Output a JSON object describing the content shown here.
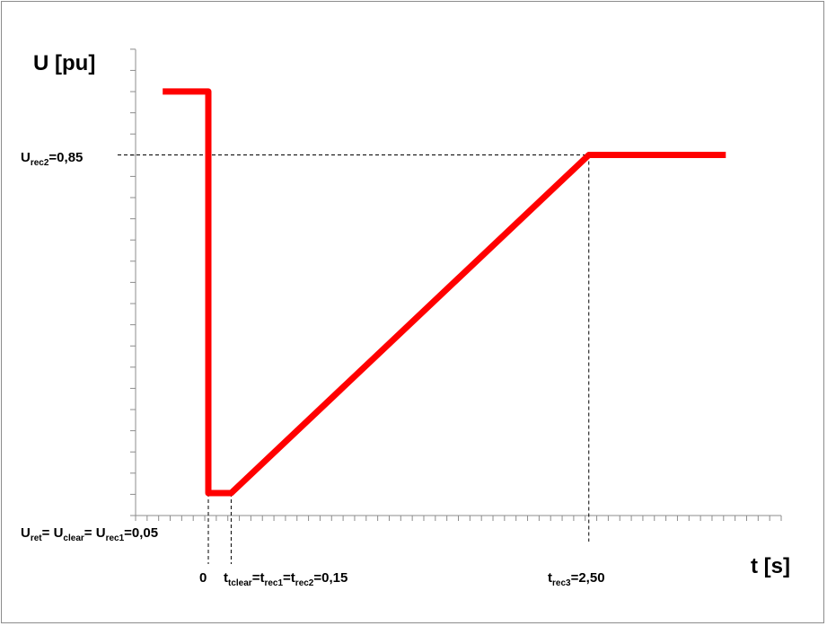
{
  "chart_data": {
    "type": "line",
    "title": "",
    "ylabel": "U [pu]",
    "xlabel": "t [s]",
    "series": [
      {
        "points": [
          {
            "t": -0.3,
            "u": 1.0
          },
          {
            "t": 0,
            "u": 1.0
          },
          {
            "t": 0,
            "u": 0.05
          },
          {
            "t": 0.15,
            "u": 0.05
          },
          {
            "t": 2.5,
            "u": 0.85
          },
          {
            "t": 3.4,
            "u": 0.85
          }
        ],
        "color": "#ff0000"
      }
    ],
    "annotations": {
      "urec2": {
        "main": "U",
        "sub": "rec2",
        "tail": "=0,85",
        "value": 0.85
      },
      "uret": [
        {
          "main": "U",
          "sub": "ret",
          "tail": "= "
        },
        {
          "main": "U",
          "sub": "clear",
          "tail": "= "
        },
        {
          "main": "U",
          "sub": "rec1",
          "tail": "=0,05"
        }
      ],
      "t0": {
        "text": "0",
        "value": 0
      },
      "tclear": [
        {
          "main": "t",
          "sub": "tclear",
          "tail": "="
        },
        {
          "main": "t",
          "sub": "rec1",
          "tail": "="
        },
        {
          "main": "t",
          "sub": "rec2",
          "tail": "=0,15"
        }
      ],
      "trec3": {
        "main": "t",
        "sub": "rec3",
        "tail": "=2,50",
        "value": 2.5
      }
    },
    "grid": false,
    "colors": {
      "series": "#ff0000",
      "axis": "#8c8c8c",
      "guide": "#000000"
    }
  }
}
